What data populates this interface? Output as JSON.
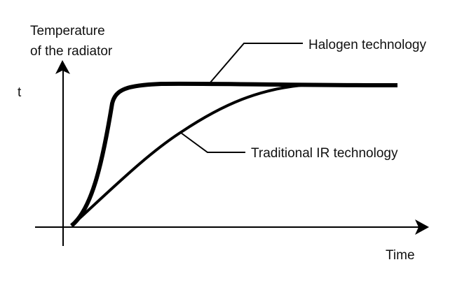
{
  "chart_data": {
    "type": "line",
    "ylabel": [
      "Temperature",
      "of the radiator"
    ],
    "ytick": "t",
    "xlabel": "Time",
    "grid": false,
    "series": [
      {
        "name": "Halogen technology",
        "shape": "rapid rise, then plateau at t",
        "color": "#000000"
      },
      {
        "name": "Traditional IR technology",
        "shape": "gradual rise, reaching plateau at t later",
        "color": "#000000"
      }
    ]
  }
}
